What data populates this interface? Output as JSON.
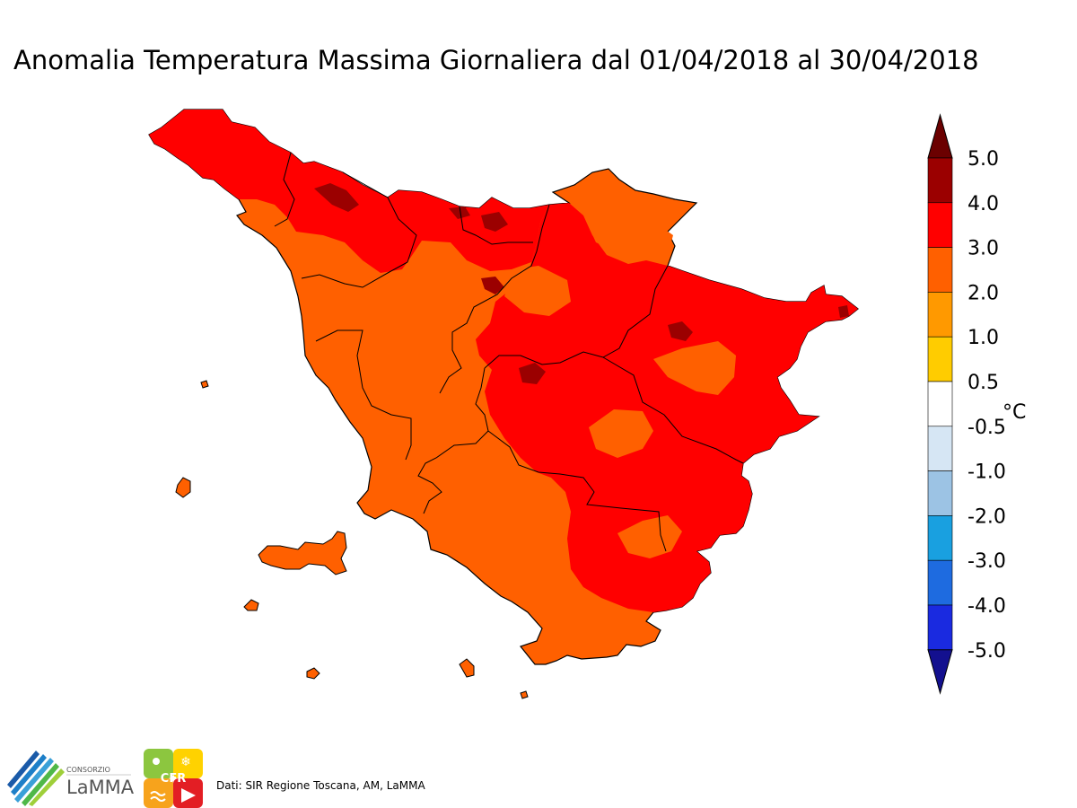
{
  "title": "Anomalia Temperatura Massima Giornaliera dal 01/04/2018 al 30/04/2018",
  "legend": {
    "unit": "°C",
    "tick_labels": [
      "5.0",
      "4.0",
      "3.0",
      "2.0",
      "1.0",
      "0.5",
      "-0.5",
      "-1.0",
      "-2.0",
      "-3.0",
      "-4.0",
      "-5.0"
    ],
    "classes": [
      {
        "range": "> 5.0",
        "color": "#6b0000"
      },
      {
        "range": "4.0 – 5.0",
        "color": "#9b0000"
      },
      {
        "range": "3.0 – 4.0",
        "color": "#ff0000"
      },
      {
        "range": "2.0 – 3.0",
        "color": "#ff6000"
      },
      {
        "range": "1.0 – 2.0",
        "color": "#ff9900"
      },
      {
        "range": "0.5 – 1.0",
        "color": "#ffcc00"
      },
      {
        "range": "-0.5 – 0.5",
        "color": "#ffffff"
      },
      {
        "range": "-1.0 – -0.5",
        "color": "#d6e6f4"
      },
      {
        "range": "-2.0 – -1.0",
        "color": "#9cc3e4"
      },
      {
        "range": "-3.0 – -2.0",
        "color": "#19a0e0"
      },
      {
        "range": "-4.0 – -3.0",
        "color": "#1e6be0"
      },
      {
        "range": "-5.0 – -4.0",
        "color": "#1a2ae0"
      },
      {
        "range": "< -5.0",
        "color": "#13108f"
      }
    ]
  },
  "source": "Dati: SIR Regione Toscana, AM, LaMMA",
  "logos": {
    "lamma": {
      "top_text": "CONSORZIO",
      "main_text": "LaMMA"
    },
    "cfr": {
      "text": "CFR"
    }
  },
  "map": {
    "region": "Toscana",
    "colors": {
      "warm_orange": "#ff6000",
      "red": "#ff0000",
      "dark_red": "#9b0000",
      "boundary": "#000000"
    }
  }
}
